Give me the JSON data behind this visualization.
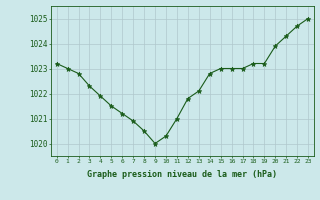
{
  "hours": [
    0,
    1,
    2,
    3,
    4,
    5,
    6,
    7,
    8,
    9,
    10,
    11,
    12,
    13,
    14,
    15,
    16,
    17,
    18,
    19,
    20,
    21,
    22,
    23
  ],
  "pressure": [
    1023.2,
    1023.0,
    1022.8,
    1022.3,
    1021.9,
    1021.5,
    1021.2,
    1020.9,
    1020.5,
    1020.0,
    1020.3,
    1021.0,
    1021.8,
    1022.1,
    1022.8,
    1023.0,
    1023.0,
    1023.0,
    1023.2,
    1023.2,
    1023.9,
    1024.3,
    1024.7,
    1025.0
  ],
  "ylim": [
    1019.5,
    1025.5
  ],
  "yticks": [
    1020,
    1021,
    1022,
    1023,
    1024,
    1025
  ],
  "xticks": [
    0,
    1,
    2,
    3,
    4,
    5,
    6,
    7,
    8,
    9,
    10,
    11,
    12,
    13,
    14,
    15,
    16,
    17,
    18,
    19,
    20,
    21,
    22,
    23
  ],
  "line_color": "#1a5c1a",
  "marker_color": "#1a5c1a",
  "bg_color": "#cce8ea",
  "grid_color": "#b0c8cc",
  "xlabel": "Graphe pression niveau de la mer (hPa)",
  "xlabel_color": "#1a5c1a",
  "tick_color": "#1a5c1a",
  "spine_color": "#1a5c1a",
  "figsize": [
    3.2,
    2.0
  ],
  "dpi": 100
}
